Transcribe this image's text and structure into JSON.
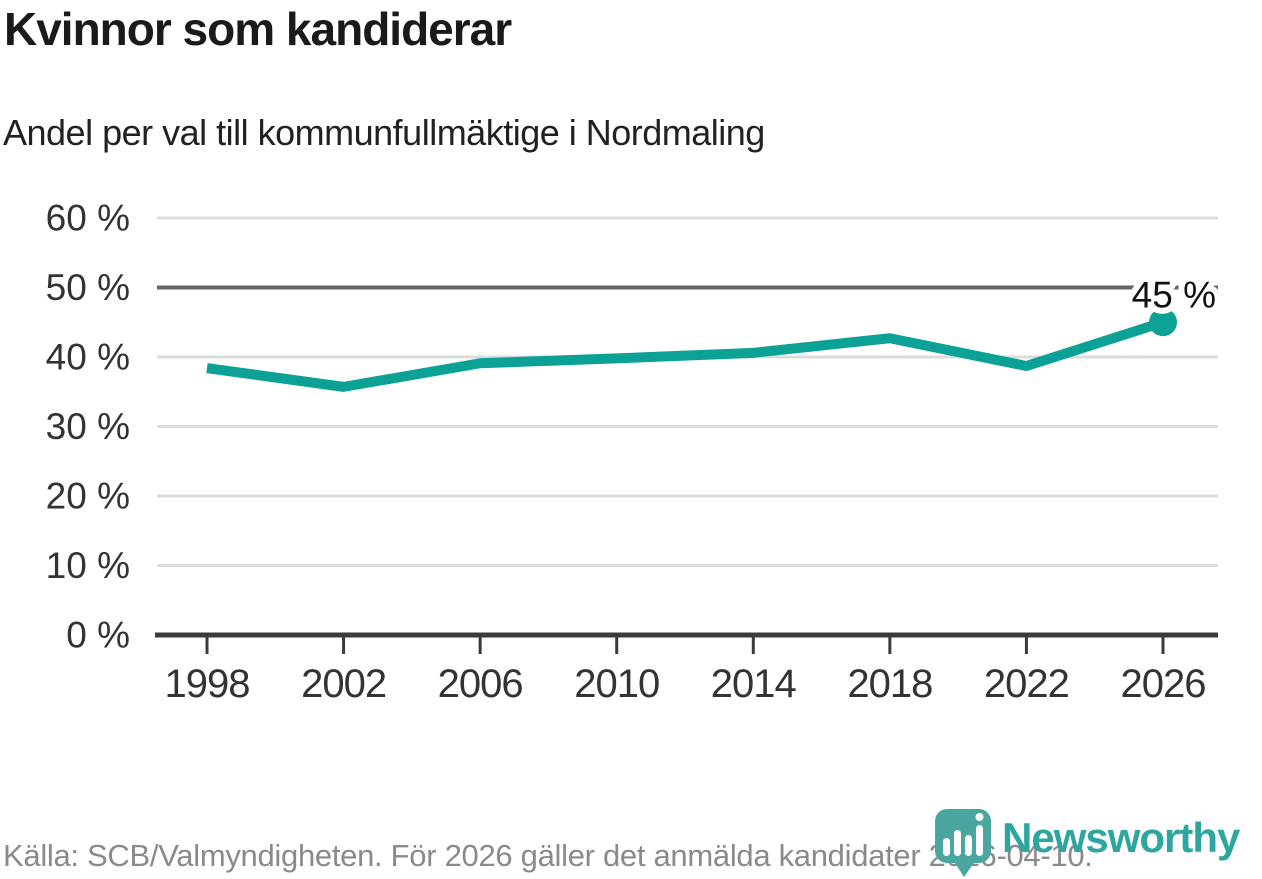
{
  "title": "Kvinnor som kandiderar",
  "subtitle": "Andel per val till kommunfullmäktige i Nordmaling",
  "chart_data": {
    "type": "line",
    "categories": [
      "1998",
      "2002",
      "2006",
      "2010",
      "2014",
      "2018",
      "2022",
      "2026"
    ],
    "values": [
      38.4,
      35.7,
      39.1,
      39.8,
      40.6,
      42.7,
      38.7,
      45
    ],
    "title": "Kvinnor som kandiderar",
    "subtitle": "Andel per val till kommunfullmäktige i Nordmaling",
    "xlabel": "",
    "ylabel": "",
    "ylim": [
      0,
      60
    ],
    "yticks": [
      0,
      10,
      20,
      30,
      40,
      50,
      60
    ],
    "ytick_suffix": " %",
    "emphasized_gridline": 50,
    "grid": true,
    "legend_position": "none",
    "end_label": "45 %",
    "line_color": "#0ba295",
    "grid_color": "#dcdcdc",
    "emphasized_grid_color": "#666666",
    "axis_color": "#3b3b3b",
    "tick_label_color": "#333333"
  },
  "footer": {
    "source": "Källa: SCB/Valmyndigheten. För 2026 gäller det anmälda kandidater 2026-04-10."
  },
  "branding": {
    "logo_text": "Newsworthy",
    "logo_icon": "bar-chart-bubble-icon",
    "brand_color": "#2ea6a0",
    "bubble_color": "#4aa69e"
  }
}
